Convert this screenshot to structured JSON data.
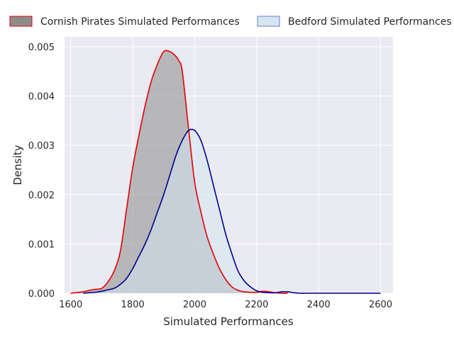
{
  "chart_data": {
    "type": "area",
    "xlabel": "Simulated Performances",
    "ylabel": "Density",
    "xlim": [
      1580,
      2640
    ],
    "ylim": [
      0,
      0.0052
    ],
    "grid": true,
    "legend": "top, outside plot, two columns",
    "x_ticks": [
      "1600",
      "1800",
      "2000",
      "2200",
      "2400",
      "2600"
    ],
    "y_ticks": [
      "0.000",
      "0.001",
      "0.002",
      "0.003",
      "0.004",
      "0.005"
    ],
    "x_tick_values": [
      1600,
      1800,
      2000,
      2200,
      2400,
      2600
    ],
    "y_tick_values": [
      0,
      0.001,
      0.002,
      0.003,
      0.004,
      0.005
    ],
    "colors": {
      "background": "#eaeaf2",
      "grid": "#ffffff",
      "cornish_fill": "#8c8c8c",
      "cornish_line": "#e60000",
      "bedford_fill": "#d4e6f1",
      "bedford_line": "#00008b",
      "bedford_legend_edge": "#6a7fd0"
    },
    "series": [
      {
        "name": "Cornish Pirates Simulated Performances",
        "x": [
          1600,
          1640,
          1660,
          1680,
          1700,
          1720,
          1740,
          1760,
          1780,
          1800,
          1820,
          1840,
          1860,
          1880,
          1900,
          1920,
          1940,
          1950,
          1960,
          1980,
          2000,
          2020,
          2040,
          2060,
          2080,
          2100,
          2120,
          2140,
          2160,
          2180,
          2200,
          2220,
          2240,
          2260,
          2280,
          2300
        ],
        "y": [
          0.0,
          3e-05,
          6e-05,
          8e-05,
          0.0001,
          0.00023,
          0.00045,
          0.00085,
          0.0017,
          0.00255,
          0.0032,
          0.0038,
          0.0043,
          0.00465,
          0.0049,
          0.0049,
          0.0048,
          0.0047,
          0.0045,
          0.00335,
          0.00225,
          0.00165,
          0.00115,
          0.0008,
          0.0005,
          0.00028,
          0.00013,
          6e-05,
          3e-05,
          2e-05,
          2e-05,
          4e-05,
          3e-05,
          1e-05,
          0.0,
          0.0
        ]
      },
      {
        "name": "Bedford Simulated Performances",
        "x": [
          1640,
          1660,
          1680,
          1700,
          1720,
          1740,
          1760,
          1780,
          1800,
          1820,
          1840,
          1860,
          1880,
          1900,
          1920,
          1940,
          1960,
          1980,
          2000,
          2020,
          2040,
          2060,
          2080,
          2100,
          2120,
          2140,
          2160,
          2180,
          2200,
          2220,
          2240,
          2260,
          2280,
          2300,
          2320,
          2340,
          2360,
          2380,
          2400,
          2420,
          2460,
          2500,
          2540,
          2580,
          2600
        ],
        "y": [
          0.0,
          1e-05,
          2e-05,
          4e-05,
          7e-05,
          0.0001,
          0.00018,
          0.0003,
          0.0005,
          0.00075,
          0.001,
          0.0013,
          0.00165,
          0.002,
          0.0024,
          0.0028,
          0.0031,
          0.0033,
          0.0033,
          0.0031,
          0.0027,
          0.0022,
          0.0017,
          0.0012,
          0.0008,
          0.00045,
          0.00025,
          0.00013,
          5e-05,
          2e-05,
          1e-05,
          1e-05,
          3e-05,
          3e-05,
          1e-05,
          0.0,
          0.0,
          0.0,
          0.0,
          0.0,
          0.0,
          0.0,
          0.0,
          0.0,
          0.0
        ]
      }
    ]
  }
}
